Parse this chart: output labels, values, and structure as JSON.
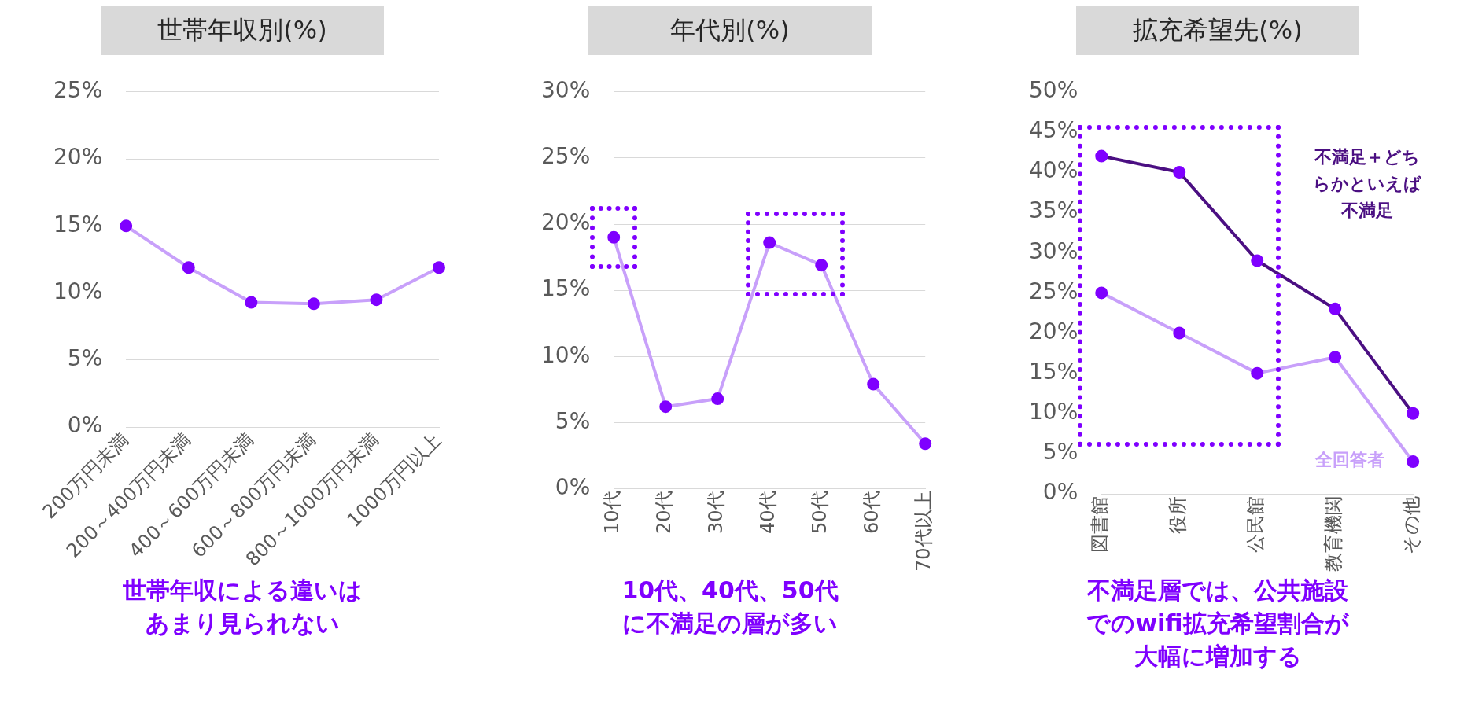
{
  "chart_data": [
    {
      "type": "line",
      "title": "世帯年収別(%)",
      "categories": [
        "200万円未満",
        "200～400万円未満",
        "400～600万円未満",
        "600～800万円未満",
        "800～1000万円未満",
        "1000万円以上"
      ],
      "values": [
        15,
        11.9,
        9.3,
        9.2,
        9.5,
        11.9
      ],
      "color": "#c8a0fa",
      "marker": "circle",
      "ylim": [
        0,
        25
      ],
      "yticks": [
        {
          "value": 0,
          "label": "0%"
        },
        {
          "value": 5,
          "label": "5%"
        },
        {
          "value": 10,
          "label": "10%"
        },
        {
          "value": 15,
          "label": "15%"
        },
        {
          "value": 20,
          "label": "20%"
        },
        {
          "value": 25,
          "label": "25%"
        }
      ],
      "grid": "y",
      "legend": false,
      "annotations": [
        "世帯年収による違いはあまり見られない"
      ]
    },
    {
      "type": "line",
      "title": "年代別(%)",
      "categories": [
        "10代",
        "20代",
        "30代",
        "40代",
        "50代",
        "60代",
        "70代以上"
      ],
      "values": [
        19,
        6.2,
        6.8,
        18.6,
        16.9,
        7.9,
        3.4
      ],
      "color": "#c8a0fa",
      "marker": "circle",
      "ylim": [
        0,
        30
      ],
      "yticks": [
        {
          "value": 0,
          "label": "0%"
        },
        {
          "value": 5,
          "label": "5%"
        },
        {
          "value": 10,
          "label": "10%"
        },
        {
          "value": 15,
          "label": "15%"
        },
        {
          "value": 20,
          "label": "20%"
        },
        {
          "value": 25,
          "label": "25%"
        },
        {
          "value": 30,
          "label": "30%"
        }
      ],
      "grid": "y",
      "legend": false,
      "annotations": [
        "10代、40代、50代に不満足の層が多い"
      ]
    },
    {
      "type": "line",
      "title": "拡充希望先(%)",
      "categories": [
        "図書館",
        "役所",
        "公民館",
        "教育機関",
        "その他"
      ],
      "series": [
        {
          "name": "不満足＋どちらかといえば不満足",
          "color": "#4b0f82",
          "values": [
            42,
            40,
            29,
            23,
            10
          ]
        },
        {
          "name": "全回答者",
          "color": "#c8a0fa",
          "values": [
            25,
            20,
            15,
            17,
            4
          ]
        }
      ],
      "marker": "circle",
      "ylim": [
        0,
        50
      ],
      "yticks": [
        {
          "value": 0,
          "label": "0%"
        },
        {
          "value": 5,
          "label": "5%"
        },
        {
          "value": 10,
          "label": "10%"
        },
        {
          "value": 15,
          "label": "15%"
        },
        {
          "value": 20,
          "label": "20%"
        },
        {
          "value": 25,
          "label": "25%"
        },
        {
          "value": 30,
          "label": "30%"
        },
        {
          "value": 35,
          "label": "35%"
        },
        {
          "value": 40,
          "label": "40%"
        },
        {
          "value": 45,
          "label": "45%"
        },
        {
          "value": 50,
          "label": "50%"
        }
      ],
      "grid": false,
      "legend": false,
      "annotations": [
        "不満足層では、公共施設でのwifi拡充希望割合が大幅に増加する"
      ]
    }
  ]
}
